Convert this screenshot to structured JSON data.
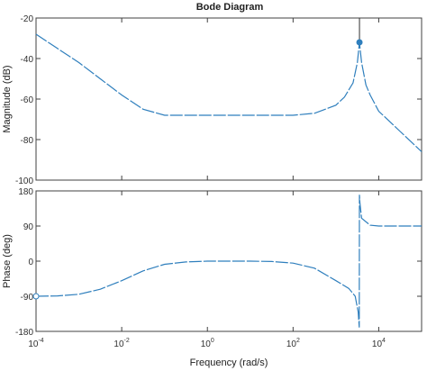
{
  "chart_data": {
    "type": "line",
    "title": "Bode Diagram",
    "xlabel": "Frequency  (rad/s)",
    "xscale": "log",
    "xlim_exponent": [
      -4,
      5
    ],
    "x_ticks": [
      {
        "label": "10",
        "exp": "-4",
        "value": 0.0001
      },
      {
        "label": "10",
        "exp": "-2",
        "value": 0.01
      },
      {
        "label": "10",
        "exp": "0",
        "value": 1
      },
      {
        "label": "10",
        "exp": "2",
        "value": 100
      },
      {
        "label": "10",
        "exp": "4",
        "value": 10000
      }
    ],
    "grid": false,
    "line_color": "#2f7fbd",
    "panels": {
      "magnitude": {
        "ylabel": "Magnitude (dB)",
        "ylim": [
          -100,
          -20
        ],
        "yticks": [
          "-20",
          "-40",
          "-60",
          "-80",
          "-100"
        ],
        "series": {
          "log10_omega": [
            -4,
            -3.5,
            -3,
            -2.5,
            -2,
            -1.5,
            -1,
            -0.5,
            0,
            0.5,
            1,
            1.5,
            2,
            2.5,
            3,
            3.2,
            3.4,
            3.5,
            3.55,
            3.6,
            3.7,
            3.8,
            4,
            4.5,
            5
          ],
          "magnitude_db": [
            -28,
            -35,
            -42,
            -50,
            -58,
            -65,
            -68,
            -68,
            -68,
            -68,
            -68,
            -68,
            -68,
            -67,
            -63,
            -59,
            -52,
            -42,
            -32,
            -42,
            -53,
            -58,
            -66,
            -76,
            -86
          ]
        },
        "peak_marker": {
          "log10_omega": 3.55,
          "magnitude_db": -32
        }
      },
      "phase": {
        "ylabel": "Phase (deg)",
        "ylim": [
          -180,
          180
        ],
        "yticks": [
          "180",
          "90",
          "0",
          "-90",
          "-180"
        ],
        "series": {
          "log10_omega": [
            -4,
            -3.5,
            -3,
            -2.5,
            -2,
            -1.5,
            -1,
            -0.5,
            0,
            0.5,
            1,
            1.5,
            2,
            2.5,
            3,
            3.3,
            3.45,
            3.52,
            3.545,
            3.55,
            3.56,
            3.6,
            3.8,
            4,
            4.5,
            5
          ],
          "phase_deg": [
            -90,
            -89,
            -85,
            -72,
            -50,
            -25,
            -8,
            -2,
            0,
            0,
            0,
            -1,
            -5,
            -18,
            -50,
            -70,
            -90,
            -130,
            -170,
            170,
            150,
            110,
            92,
            90,
            90,
            90
          ]
        },
        "start_marker": {
          "log10_omega": -4,
          "phase_deg": -90
        }
      }
    }
  }
}
